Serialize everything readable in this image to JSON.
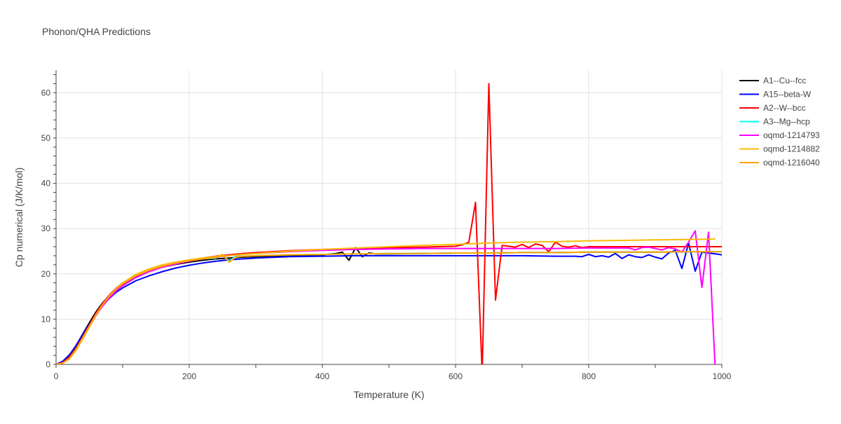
{
  "chart_data": {
    "type": "line",
    "title": "Phonon/QHA Predictions",
    "xlabel": "Temperature (K)",
    "ylabel": "Cp numerical (J/K/mol)",
    "xlim": [
      0,
      1000
    ],
    "ylim": [
      0,
      65
    ],
    "xticks": [
      0,
      200,
      400,
      600,
      800,
      1000
    ],
    "yticks": [
      0,
      10,
      20,
      30,
      40,
      50,
      60
    ],
    "grid": true,
    "legend_position": "right",
    "series": [
      {
        "name": "A1--Cu--fcc",
        "color": "#000000",
        "x": [
          0,
          10,
          20,
          30,
          40,
          50,
          60,
          70,
          80,
          90,
          100,
          120,
          140,
          160,
          180,
          200,
          220,
          240,
          260,
          280,
          300,
          350,
          400,
          420,
          430,
          440,
          450,
          460,
          470,
          480,
          500,
          550,
          600,
          650,
          700,
          750,
          800,
          850,
          900,
          950,
          1000
        ],
        "y": [
          0,
          0.6,
          2.0,
          4.1,
          6.7,
          9.2,
          11.6,
          13.6,
          15.2,
          16.5,
          17.6,
          19.3,
          20.6,
          21.5,
          22.1,
          22.6,
          23.0,
          23.3,
          23.5,
          23.7,
          23.8,
          24.0,
          24.2,
          24.5,
          24.8,
          23.0,
          25.8,
          23.8,
          24.6,
          24.4,
          24.4,
          24.5,
          24.6,
          24.6,
          24.7,
          24.7,
          24.8,
          24.8,
          24.8,
          24.9,
          24.9
        ]
      },
      {
        "name": "A15--beta-W",
        "color": "#0000ff",
        "x": [
          0,
          10,
          20,
          30,
          40,
          50,
          60,
          70,
          80,
          90,
          100,
          120,
          140,
          160,
          180,
          200,
          220,
          240,
          260,
          280,
          300,
          350,
          400,
          450,
          500,
          550,
          600,
          650,
          700,
          750,
          780,
          790,
          800,
          810,
          820,
          830,
          840,
          850,
          860,
          870,
          880,
          890,
          900,
          910,
          920,
          930,
          940,
          950,
          960,
          970,
          980,
          990,
          1000
        ],
        "y": [
          0,
          0.7,
          2.1,
          4.2,
          6.6,
          8.9,
          11.1,
          13.0,
          14.6,
          15.9,
          16.9,
          18.5,
          19.6,
          20.5,
          21.3,
          21.9,
          22.4,
          22.8,
          23.1,
          23.3,
          23.5,
          23.8,
          23.9,
          24.0,
          24.0,
          24.0,
          24.0,
          24.0,
          24.0,
          23.9,
          23.9,
          23.8,
          24.3,
          23.8,
          24.0,
          23.7,
          24.5,
          23.4,
          24.2,
          23.8,
          23.6,
          24.2,
          23.7,
          23.3,
          24.6,
          25.2,
          21.2,
          26.8,
          20.6,
          24.8,
          24.6,
          24.4,
          24.2
        ]
      },
      {
        "name": "A2--W--bcc",
        "color": "#ff0000",
        "x": [
          0,
          10,
          20,
          30,
          40,
          50,
          60,
          70,
          80,
          90,
          100,
          120,
          140,
          160,
          180,
          200,
          220,
          240,
          260,
          280,
          300,
          350,
          400,
          450,
          500,
          550,
          600,
          610,
          620,
          630,
          640,
          650,
          660,
          670,
          680,
          690,
          700,
          710,
          720,
          730,
          740,
          750,
          760,
          770,
          780,
          790,
          800,
          850,
          900,
          950,
          1000
        ],
        "y": [
          0,
          0.4,
          1.6,
          3.6,
          6.1,
          8.7,
          11.3,
          13.5,
          15.3,
          16.8,
          18.0,
          19.7,
          20.9,
          21.8,
          22.5,
          23.0,
          23.5,
          23.9,
          24.2,
          24.5,
          24.7,
          25.1,
          25.4,
          25.6,
          25.8,
          25.9,
          26.1,
          26.4,
          27.0,
          35.8,
          -2.0,
          62.0,
          14.2,
          26.3,
          26.1,
          25.9,
          26.5,
          25.8,
          26.6,
          26.3,
          24.9,
          27.0,
          26.1,
          25.9,
          26.2,
          25.8,
          26.0,
          26.0,
          26.0,
          26.0,
          26.0
        ]
      },
      {
        "name": "A3--Mg--hcp",
        "color": "#00ffff",
        "x": [
          0,
          10,
          20,
          30,
          40,
          50,
          60,
          70,
          80,
          90,
          100,
          120,
          140,
          160,
          180,
          200,
          220,
          240,
          250,
          260,
          270,
          280,
          300,
          350,
          400,
          450,
          500,
          550,
          600,
          650,
          700,
          750,
          800,
          850,
          900,
          950,
          1000
        ],
        "y": [
          0,
          0.3,
          1.3,
          3.3,
          5.8,
          8.4,
          11.0,
          13.2,
          15.1,
          16.6,
          17.8,
          19.6,
          20.8,
          21.7,
          22.4,
          22.9,
          23.3,
          23.5,
          24.2,
          22.8,
          23.9,
          23.9,
          24.0,
          24.2,
          24.3,
          24.4,
          24.5,
          24.5,
          24.6,
          24.6,
          24.7,
          24.7,
          24.8,
          24.8,
          24.8,
          24.9,
          24.9
        ]
      },
      {
        "name": "oqmd-1214793",
        "color": "#ff00ff",
        "x": [
          0,
          10,
          20,
          30,
          40,
          50,
          60,
          70,
          80,
          90,
          100,
          120,
          140,
          160,
          180,
          200,
          220,
          240,
          260,
          280,
          300,
          350,
          400,
          450,
          500,
          550,
          600,
          650,
          700,
          750,
          800,
          850,
          860,
          870,
          880,
          890,
          900,
          910,
          920,
          930,
          940,
          950,
          960,
          970,
          980,
          985,
          990
        ],
        "y": [
          0,
          0.3,
          1.3,
          3.2,
          5.7,
          8.3,
          10.8,
          12.9,
          14.7,
          16.2,
          17.4,
          19.2,
          20.5,
          21.5,
          22.2,
          22.8,
          23.3,
          23.7,
          24.0,
          24.3,
          24.5,
          24.9,
          25.2,
          25.4,
          25.5,
          25.6,
          25.6,
          25.6,
          25.6,
          25.6,
          25.7,
          25.7,
          25.7,
          25.3,
          25.8,
          25.9,
          25.6,
          25.3,
          25.8,
          25.5,
          24.8,
          27.0,
          29.5,
          17.0,
          29.2,
          14.0,
          -1.0
        ]
      },
      {
        "name": "oqmd-1214882",
        "color": "#fbbc04",
        "x": [
          0,
          10,
          20,
          30,
          40,
          50,
          60,
          70,
          80,
          90,
          100,
          120,
          140,
          160,
          180,
          200,
          220,
          240,
          260,
          280,
          300,
          350,
          400,
          450,
          500,
          550,
          600,
          650,
          700,
          750,
          800,
          850,
          900,
          950,
          990
        ],
        "y": [
          0,
          0.3,
          1.2,
          3.1,
          5.6,
          8.3,
          10.9,
          13.2,
          15.1,
          16.7,
          18.0,
          19.9,
          21.1,
          22.0,
          22.6,
          23.1,
          23.5,
          23.8,
          24.0,
          24.3,
          24.5,
          25.0,
          25.4,
          25.7,
          26.0,
          26.3,
          26.5,
          26.8,
          27.0,
          27.1,
          27.3,
          27.4,
          27.5,
          27.6,
          27.7
        ]
      },
      {
        "name": "oqmd-1216040",
        "color": "#ffa500",
        "x": [
          0,
          10,
          20,
          30,
          40,
          50,
          60,
          70,
          80,
          90,
          100,
          120,
          140,
          160,
          180,
          200,
          220,
          240,
          250,
          260,
          270,
          280,
          300,
          350,
          400,
          450,
          500,
          550,
          600,
          650,
          700,
          750,
          800,
          850,
          900,
          950,
          1000
        ],
        "y": [
          0,
          0.3,
          1.3,
          3.3,
          5.8,
          8.4,
          11.0,
          13.2,
          15.1,
          16.6,
          17.8,
          19.6,
          20.8,
          21.7,
          22.4,
          22.9,
          23.3,
          23.6,
          24.3,
          22.6,
          23.7,
          23.9,
          24.0,
          24.2,
          24.3,
          24.4,
          24.5,
          24.5,
          24.6,
          24.6,
          24.7,
          24.7,
          24.8,
          24.8,
          24.8,
          24.9,
          24.9
        ]
      }
    ]
  }
}
